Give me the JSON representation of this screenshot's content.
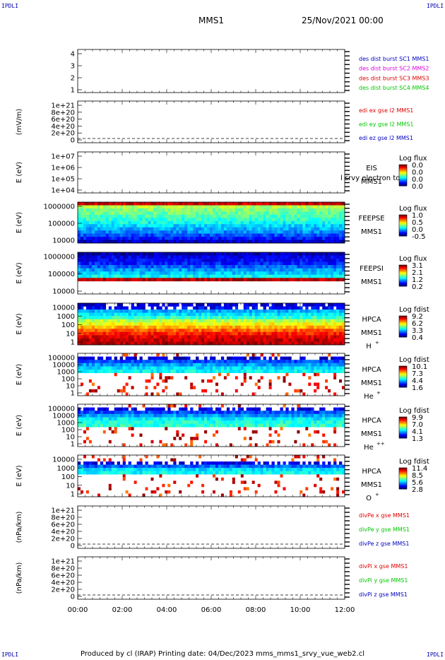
{
  "header": {
    "corner_label": "IPDLI",
    "spacecraft": "MMS1",
    "datetime": "25/Nov/2021 00:00"
  },
  "footer": {
    "text": "Produced by cl (IRAP)   Printing date: 04/Dec/2023   mms_mms1_srvy_vue_web2.cl"
  },
  "colors": {
    "red": "#e00000",
    "green": "#00c800",
    "blue": "#0000c0",
    "magenta": "#e000e0"
  },
  "chart_data": [
    {
      "type": "line",
      "panel": "burst",
      "yticks": [
        "4",
        "3",
        "2",
        "1"
      ],
      "ylim": [
        0.5,
        4.5
      ],
      "legend": [
        {
          "text": "des dist burst SC1 MMS1",
          "color": "#0000c0"
        },
        {
          "text": "des dist burst SC2 MMS2",
          "color": "#e000e0"
        },
        {
          "text": "des dist burst SC3 MMS3",
          "color": "#e00000"
        },
        {
          "text": "des dist burst SC4 MMS4",
          "color": "#00c800"
        }
      ],
      "series": []
    },
    {
      "type": "line",
      "panel": "edi",
      "ylabel": "(mV/m)",
      "yticks": [
        "1e+21",
        "8e+20",
        "6e+20",
        "4e+20",
        "2e+20",
        "0"
      ],
      "ylim": [
        0,
        1e+21
      ],
      "zero_line": true,
      "legend": [
        {
          "text": "edi ex gse l2 MMS1",
          "color": "#e00000"
        },
        {
          "text": "edi ey gse l2 MMS1",
          "color": "#00c800"
        },
        {
          "text": "edi ez gse l2 MMS1",
          "color": "#0000c0"
        }
      ]
    },
    {
      "type": "heatmap",
      "panel": "EIS",
      "ylabel": "E (eV)",
      "yticks": [
        "1e+07",
        "1e+06",
        "1e+05",
        "1e+04"
      ],
      "yscale": "log",
      "labels": [
        "EIS",
        "MMS1"
      ],
      "overlay_text": "l srvy electron to",
      "colorbar": {
        "title": "Log flux",
        "ticks": [
          "0.0",
          "0.0",
          "0.0",
          "0.0"
        ]
      },
      "empty": true
    },
    {
      "type": "heatmap",
      "panel": "FEEPSE",
      "ylabel": "E (eV)",
      "yticks": [
        "1000000",
        "100000",
        "10000"
      ],
      "yscale": "log",
      "labels": [
        "FEEPSE",
        "MMS1"
      ],
      "colorbar": {
        "title": "Log flux",
        "ticks": [
          "1.0",
          "0.5",
          "0.0",
          "-0.5"
        ]
      },
      "energy_profile": [
        0.92,
        0.55,
        0.5,
        0.48,
        0.45,
        0.42,
        0.38,
        0.34,
        0.3,
        0.26,
        0.2,
        0.14,
        0.08
      ]
    },
    {
      "type": "heatmap",
      "panel": "FEEPSI",
      "ylabel": "E (eV)",
      "yticks": [
        "1000000",
        "100000",
        "10000"
      ],
      "yscale": "log",
      "labels": [
        "FEEPSI",
        "MMS1"
      ],
      "colorbar": {
        "title": "Log flux",
        "ticks": [
          "3.1",
          "2.1",
          "1.2",
          "0.2"
        ]
      },
      "energy_profile": [
        0.05,
        0.1,
        0.12,
        0.15,
        0.22,
        0.28,
        0.32,
        0.38,
        0.95,
        0.0,
        0.0,
        0.0,
        0.0
      ]
    },
    {
      "type": "heatmap",
      "panel": "HPCA H+",
      "ylabel": "E (eV)",
      "yticks": [
        "10000",
        "1000",
        "100",
        "10",
        "1"
      ],
      "yscale": "log",
      "labels": [
        "HPCA",
        "MMS1",
        "H",
        "+"
      ],
      "colorbar": {
        "title": "Log fdist",
        "ticks": [
          "9.2",
          "6.2",
          "3.3",
          "0.4"
        ]
      },
      "energy_profile": [
        0.08,
        0.12,
        0.3,
        0.35,
        0.42,
        0.55,
        0.62,
        0.7,
        0.78,
        0.85,
        0.9,
        0.93,
        0.95
      ]
    },
    {
      "type": "heatmap",
      "panel": "HPCA He+",
      "ylabel": "E (eV)",
      "yticks": [
        "100000",
        "10000",
        "1000",
        "100",
        "10",
        "1"
      ],
      "yscale": "log",
      "labels": [
        "HPCA",
        "MMS1",
        "He",
        "+"
      ],
      "colorbar": {
        "title": "Log fdist",
        "ticks": [
          "10.1",
          "7.3",
          "4.4",
          "1.6"
        ]
      },
      "energy_profile": [
        0.0,
        0.08,
        0.2,
        0.28,
        0.35,
        0.38,
        0.0,
        0.0,
        0.0,
        0.0,
        0.0,
        0.0,
        0.0
      ]
    },
    {
      "type": "heatmap",
      "panel": "HPCA He++",
      "ylabel": "E (eV)",
      "yticks": [
        "100000",
        "10000",
        "1000",
        "100",
        "10",
        "1"
      ],
      "yscale": "log",
      "labels": [
        "HPCA",
        "MMS1",
        "He",
        "++"
      ],
      "colorbar": {
        "title": "Log fdist",
        "ticks": [
          "9.9",
          "7.0",
          "4.1",
          "1.3"
        ]
      },
      "energy_profile": [
        0.0,
        0.1,
        0.2,
        0.28,
        0.36,
        0.4,
        0.42,
        0.0,
        0.0,
        0.0,
        0.0,
        0.0,
        0.0
      ]
    },
    {
      "type": "heatmap",
      "panel": "HPCA O+",
      "ylabel": "E (eV)",
      "yticks": [
        "10000",
        "1000",
        "100",
        "10",
        "1"
      ],
      "yscale": "log",
      "labels": [
        "HPCA",
        "MMS1",
        "O",
        "+"
      ],
      "colorbar": {
        "title": "Log fdist",
        "ticks": [
          "11.4",
          "8.5",
          "5.6",
          "2.8"
        ]
      },
      "energy_profile": [
        0.0,
        0.0,
        0.1,
        0.22,
        0.35,
        0.38,
        0.0,
        0.0,
        0.0,
        0.0,
        0.0,
        0.0,
        0.0
      ]
    },
    {
      "type": "line",
      "panel": "divPe",
      "ylabel": "(nPa/km)",
      "yticks": [
        "1e+21",
        "8e+20",
        "6e+20",
        "4e+20",
        "2e+20",
        "0"
      ],
      "ylim": [
        0,
        1e+21
      ],
      "zero_line": true,
      "legend": [
        {
          "text": "divPe x gse MMS1",
          "color": "#e00000"
        },
        {
          "text": "divPe y gse MMS1",
          "color": "#00c800"
        },
        {
          "text": "divPe z gse MMS1",
          "color": "#0000c0"
        }
      ]
    },
    {
      "type": "line",
      "panel": "divPi",
      "ylabel": "(nPa/km)",
      "yticks": [
        "1e+21",
        "8e+20",
        "6e+20",
        "4e+20",
        "2e+20",
        "0"
      ],
      "ylim": [
        0,
        1e+21
      ],
      "zero_line": true,
      "legend": [
        {
          "text": "divPi x gse MMS1",
          "color": "#e00000"
        },
        {
          "text": "divPi y gse MMS1",
          "color": "#00c800"
        },
        {
          "text": "divPi z gse MMS1",
          "color": "#0000c0"
        }
      ]
    }
  ],
  "xaxis": {
    "ticks": [
      "00:00",
      "02:00",
      "04:00",
      "06:00",
      "08:00",
      "10:00",
      "12:00"
    ]
  }
}
